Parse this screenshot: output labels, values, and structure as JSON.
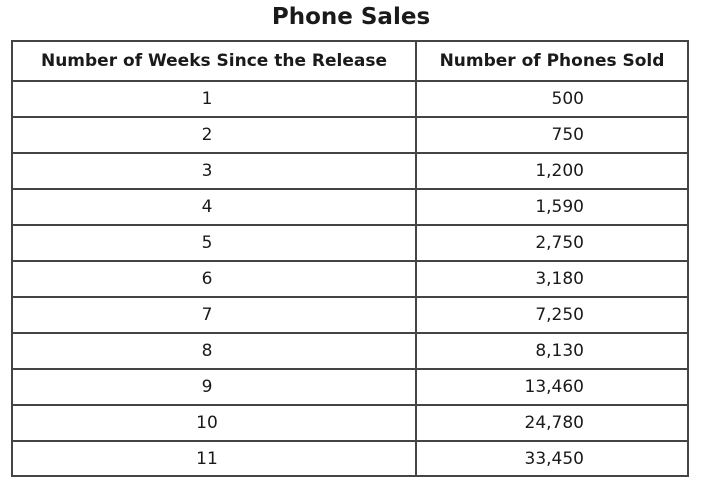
{
  "chart_data": {
    "type": "table",
    "title": "Phone Sales",
    "columns": [
      "Number of Weeks Since the Release",
      "Number of Phones Sold"
    ],
    "rows": [
      {
        "weeks": "1",
        "sold": "500"
      },
      {
        "weeks": "2",
        "sold": "750"
      },
      {
        "weeks": "3",
        "sold": "1,200"
      },
      {
        "weeks": "4",
        "sold": "1,590"
      },
      {
        "weeks": "5",
        "sold": "2,750"
      },
      {
        "weeks": "6",
        "sold": "3,180"
      },
      {
        "weeks": "7",
        "sold": "7,250"
      },
      {
        "weeks": "8",
        "sold": "8,130"
      },
      {
        "weeks": "9",
        "sold": "13,460"
      },
      {
        "weeks": "10",
        "sold": "24,780"
      },
      {
        "weeks": "11",
        "sold": "33,450"
      }
    ]
  }
}
